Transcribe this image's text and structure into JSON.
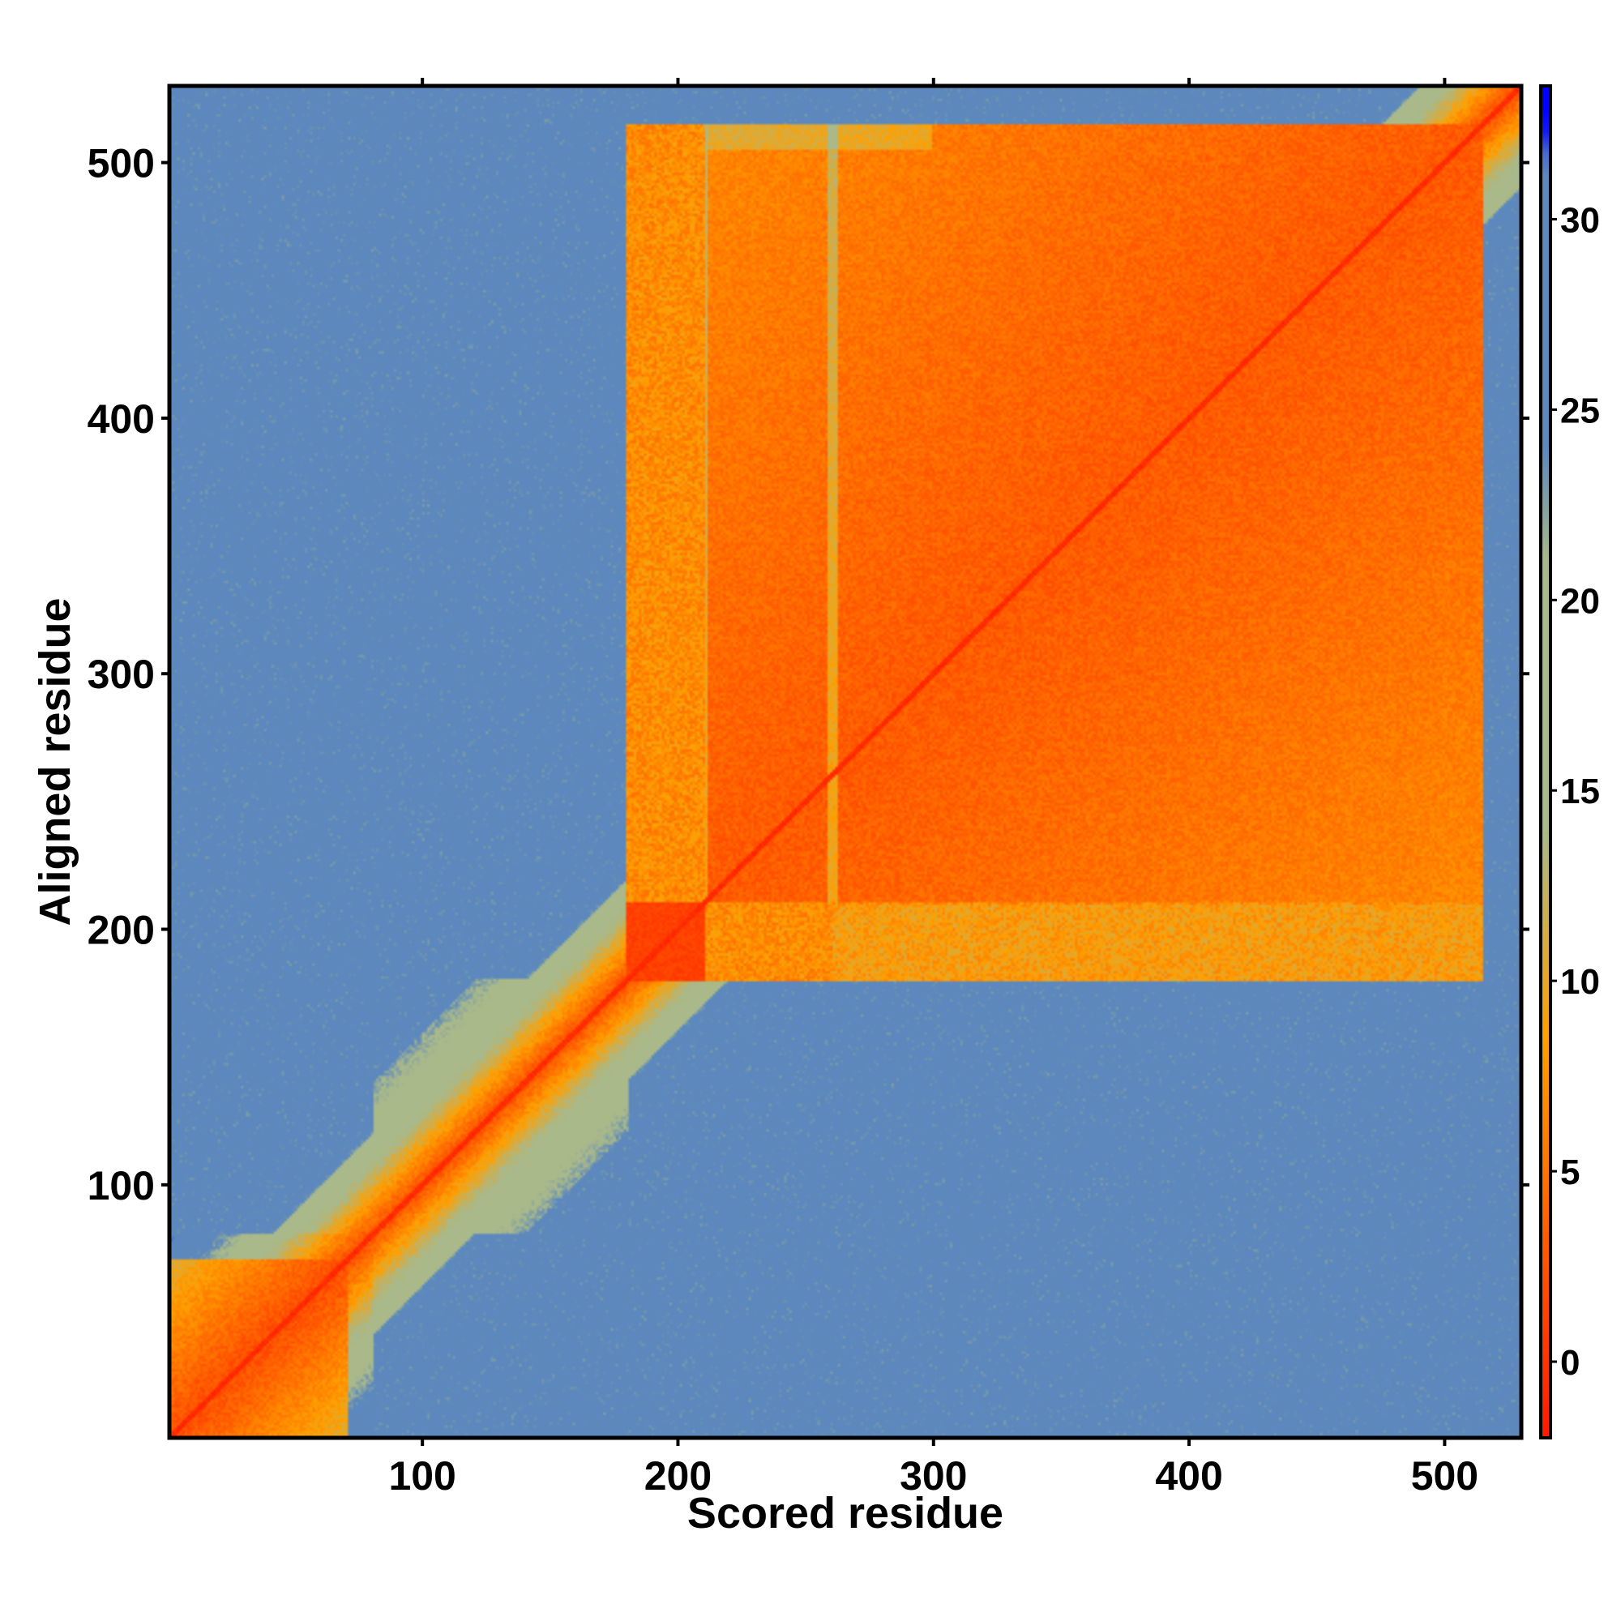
{
  "chart_data": {
    "type": "heatmap",
    "title": "",
    "xlabel": "Scored residue",
    "ylabel": "Aligned residue",
    "n_residues": 530,
    "xlim": [
      1,
      530
    ],
    "ylim": [
      1,
      530
    ],
    "xticks": [
      100,
      200,
      300,
      400,
      500
    ],
    "yticks": [
      100,
      200,
      300,
      400,
      500
    ],
    "colorbar": {
      "range": [
        -2,
        33.5
      ],
      "ticks": [
        0,
        5,
        10,
        15,
        20,
        25,
        30
      ]
    },
    "domains": [
      {
        "start": 1,
        "end": 80
      },
      {
        "start": 80,
        "end": 180
      },
      {
        "start": 180,
        "end": 210
      },
      {
        "start": 210,
        "end": 515
      }
    ],
    "colors": {
      "low": "#ff1a00",
      "mid_low": "#ff5a00",
      "mid": "#ffa000",
      "mid_high": "#a9b98a",
      "high": "#5c88bd",
      "max": "#0000ff"
    }
  }
}
